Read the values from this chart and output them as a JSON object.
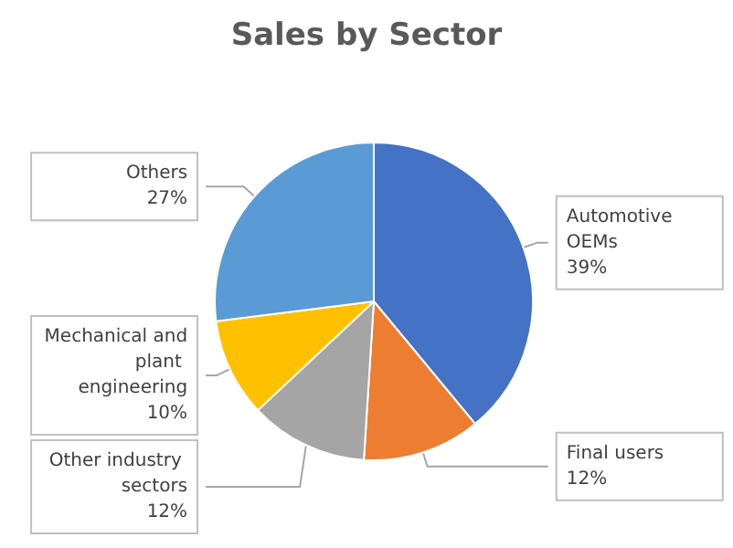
{
  "chart_data": {
    "type": "pie",
    "title": "Sales by Sector",
    "categories": [
      "Automotive OEMs",
      "Final users",
      "Other industry sectors",
      "Mechanical and plant engineering",
      "Others"
    ],
    "values": [
      39,
      12,
      12,
      10,
      27
    ],
    "value_labels": [
      "39%",
      "12%",
      "12%",
      "10%",
      "27%"
    ],
    "colors": [
      "#4472c4",
      "#ed7d31",
      "#a5a5a5",
      "#ffc000",
      "#5b9bd5"
    ],
    "legend": false
  }
}
